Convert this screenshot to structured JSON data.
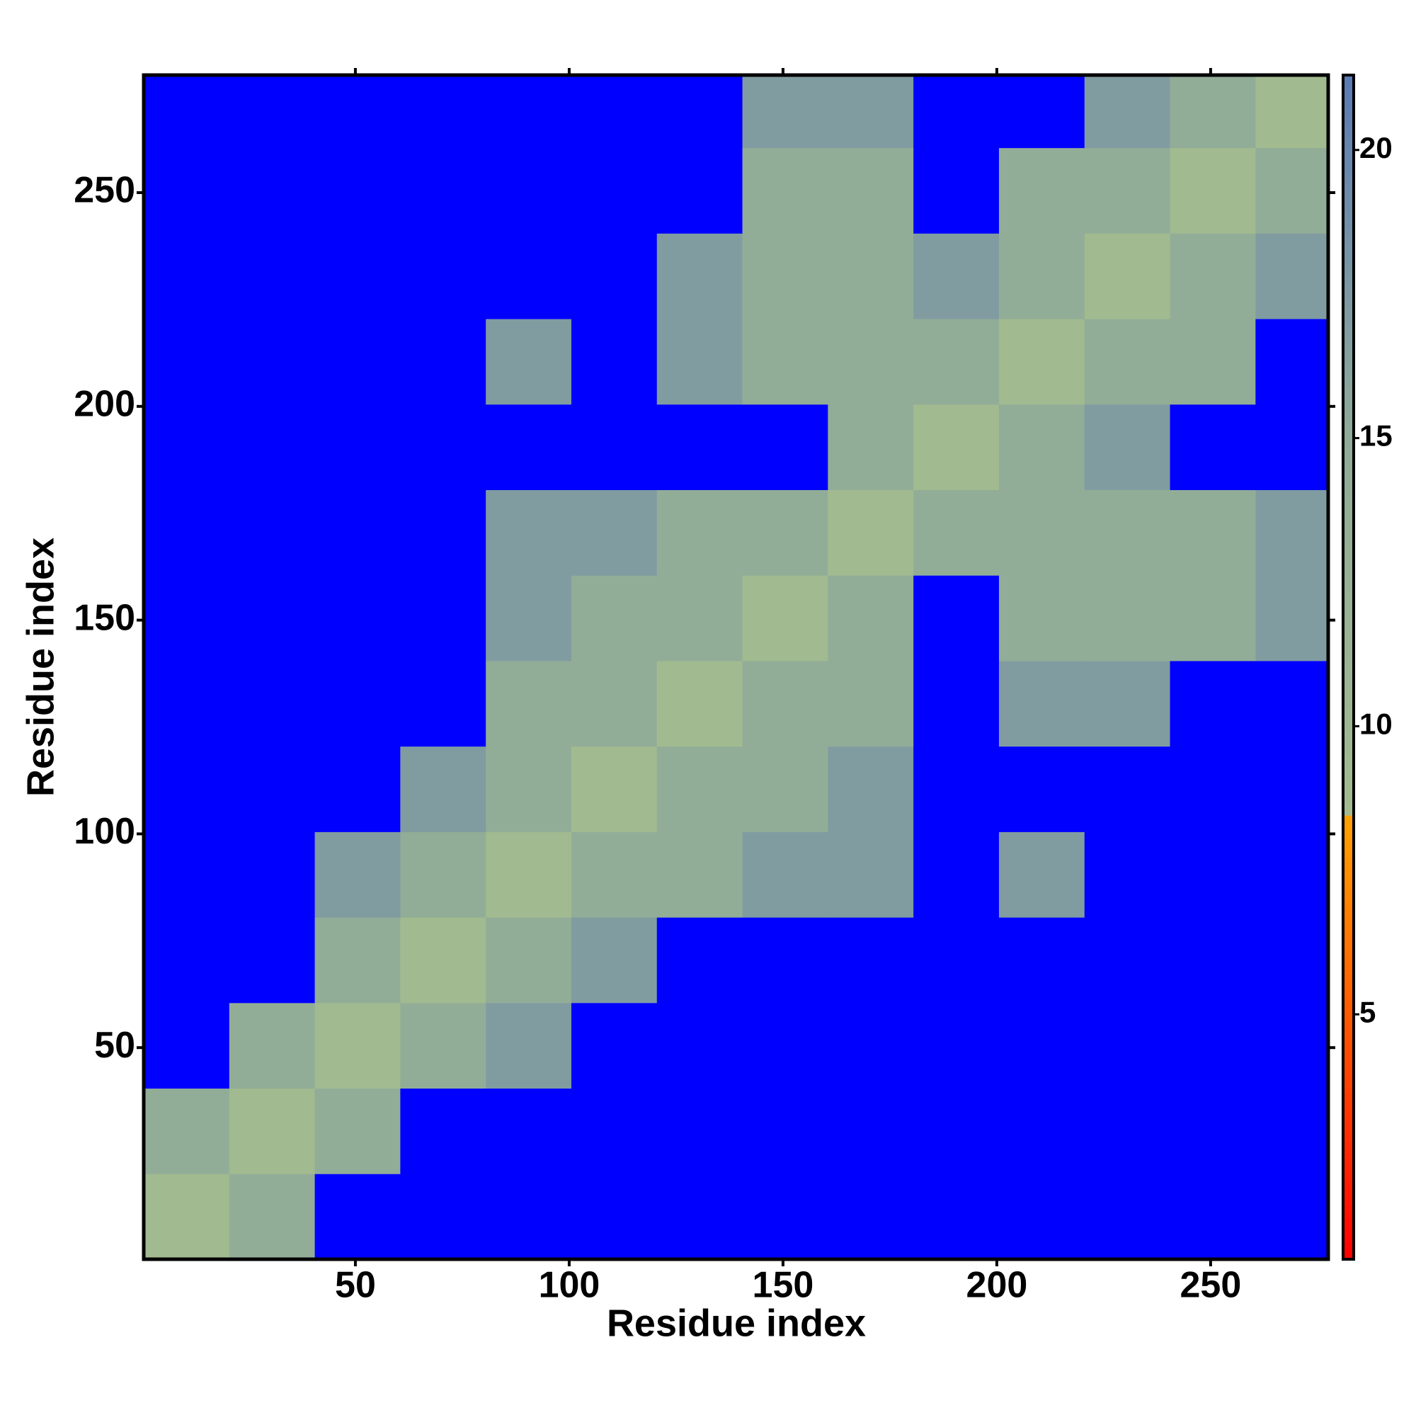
{
  "chart_data": {
    "type": "heatmap",
    "xlabel": "Residue index",
    "ylabel": "Residue index",
    "xbins": [
      0.5,
      20.5,
      40.5,
      60.5,
      80.5,
      100.5,
      120.5,
      140.5,
      160.5,
      180.5,
      200.5,
      220.5,
      240.5,
      260.5,
      277.5
    ],
    "ybins": [
      0.5,
      20.5,
      40.5,
      60.5,
      80.5,
      100.5,
      120.5,
      140.5,
      160.5,
      180.5,
      200.5,
      220.5,
      240.5,
      260.5,
      277.5
    ],
    "z": [
      [
        9,
        14,
        25,
        25,
        25,
        25,
        25,
        25,
        25,
        25,
        25,
        25,
        25,
        25
      ],
      [
        14,
        9,
        14,
        25,
        25,
        25,
        25,
        25,
        25,
        25,
        25,
        25,
        25,
        25
      ],
      [
        25,
        14,
        9,
        14,
        17,
        25,
        25,
        25,
        25,
        25,
        25,
        25,
        25,
        25
      ],
      [
        25,
        25,
        14,
        9,
        14,
        17,
        25,
        25,
        25,
        25,
        25,
        25,
        25,
        25
      ],
      [
        25,
        25,
        17,
        14,
        9,
        14,
        14,
        17,
        17,
        25,
        17,
        25,
        25,
        25
      ],
      [
        25,
        25,
        25,
        17,
        14,
        9,
        14,
        14,
        17,
        25,
        25,
        25,
        25,
        25
      ],
      [
        25,
        25,
        25,
        25,
        14,
        14,
        9,
        14,
        14,
        25,
        17,
        17,
        25,
        25
      ],
      [
        25,
        25,
        25,
        25,
        17,
        14,
        14,
        9,
        14,
        25,
        14,
        14,
        14,
        17
      ],
      [
        25,
        25,
        25,
        25,
        17,
        17,
        14,
        14,
        9,
        14,
        14,
        14,
        14,
        17
      ],
      [
        25,
        25,
        25,
        25,
        25,
        25,
        25,
        25,
        14,
        9,
        14,
        17,
        25,
        25
      ],
      [
        25,
        25,
        25,
        25,
        17,
        25,
        17,
        14,
        14,
        14,
        9,
        14,
        14,
        25
      ],
      [
        25,
        25,
        25,
        25,
        25,
        25,
        17,
        14,
        14,
        17,
        14,
        9,
        14,
        17
      ],
      [
        25,
        25,
        25,
        25,
        25,
        25,
        25,
        14,
        14,
        25,
        14,
        14,
        9,
        14
      ],
      [
        25,
        25,
        25,
        25,
        25,
        25,
        25,
        17,
        17,
        25,
        25,
        17,
        14,
        9
      ]
    ],
    "xlim": [
      0.5,
      277.5
    ],
    "ylim": [
      0.5,
      277.5
    ],
    "xticks": [
      50,
      100,
      150,
      200,
      250
    ],
    "yticks": [
      50,
      100,
      150,
      200,
      250
    ],
    "zlim": [
      0.75,
      21.3
    ],
    "colorbar_ticks": [
      5,
      10,
      15,
      20
    ],
    "colorscale": [
      [
        0.75,
        "#ff0000"
      ],
      [
        5,
        "#ff5a00"
      ],
      [
        8.4,
        "#ffa000"
      ],
      [
        8.5,
        "#a3bb8f"
      ],
      [
        15,
        "#8fab98"
      ],
      [
        18,
        "#7895a6"
      ],
      [
        21.3,
        "#5a7ab4"
      ]
    ],
    "over_color": "#0000ff"
  }
}
